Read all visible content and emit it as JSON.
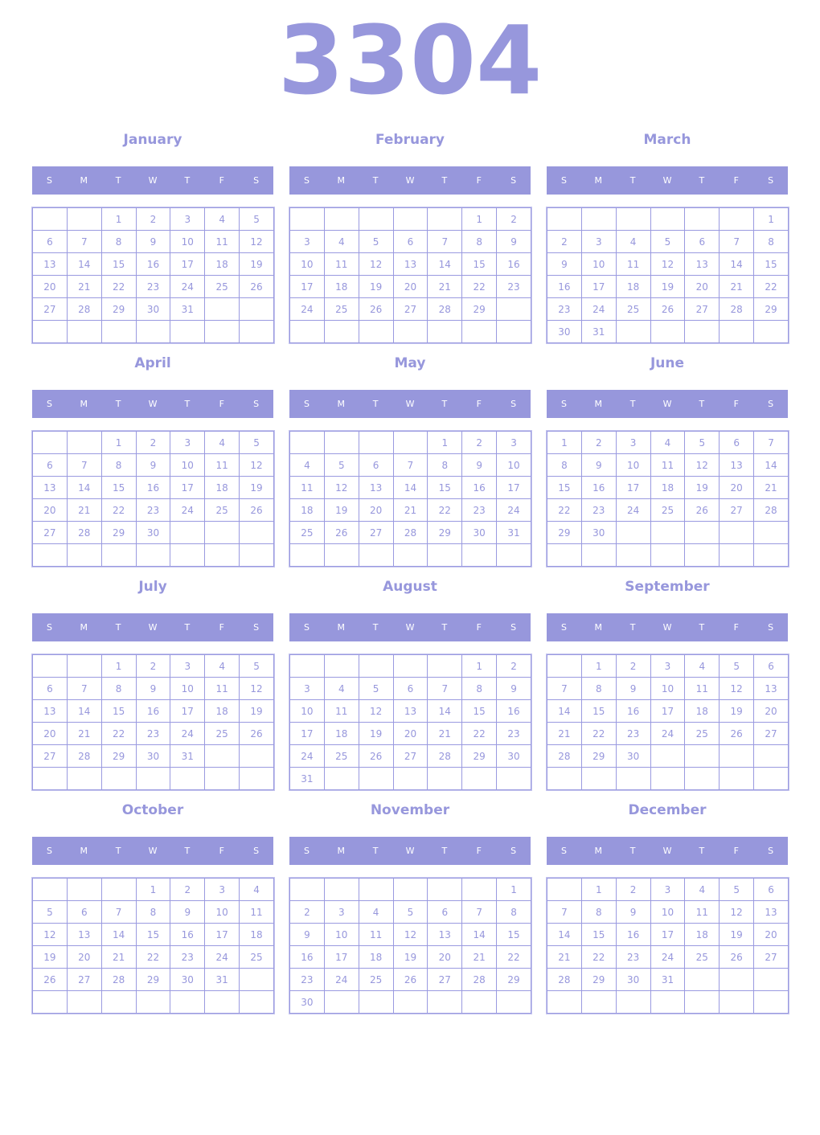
{
  "year": "3304",
  "weekdays": [
    "S",
    "M",
    "T",
    "W",
    "T",
    "F",
    "S"
  ],
  "accent": "#9797dc",
  "months": [
    {
      "name": "January",
      "first_weekday": 2,
      "days": 31
    },
    {
      "name": "February",
      "first_weekday": 5,
      "days": 29
    },
    {
      "name": "March",
      "first_weekday": 6,
      "days": 31
    },
    {
      "name": "April",
      "first_weekday": 2,
      "days": 30
    },
    {
      "name": "May",
      "first_weekday": 4,
      "days": 31
    },
    {
      "name": "June",
      "first_weekday": 0,
      "days": 30
    },
    {
      "name": "July",
      "first_weekday": 2,
      "days": 31
    },
    {
      "name": "August",
      "first_weekday": 5,
      "days": 31
    },
    {
      "name": "September",
      "first_weekday": 1,
      "days": 30
    },
    {
      "name": "October",
      "first_weekday": 3,
      "days": 31
    },
    {
      "name": "November",
      "first_weekday": 6,
      "days": 30
    },
    {
      "name": "December",
      "first_weekday": 1,
      "days": 31
    }
  ]
}
